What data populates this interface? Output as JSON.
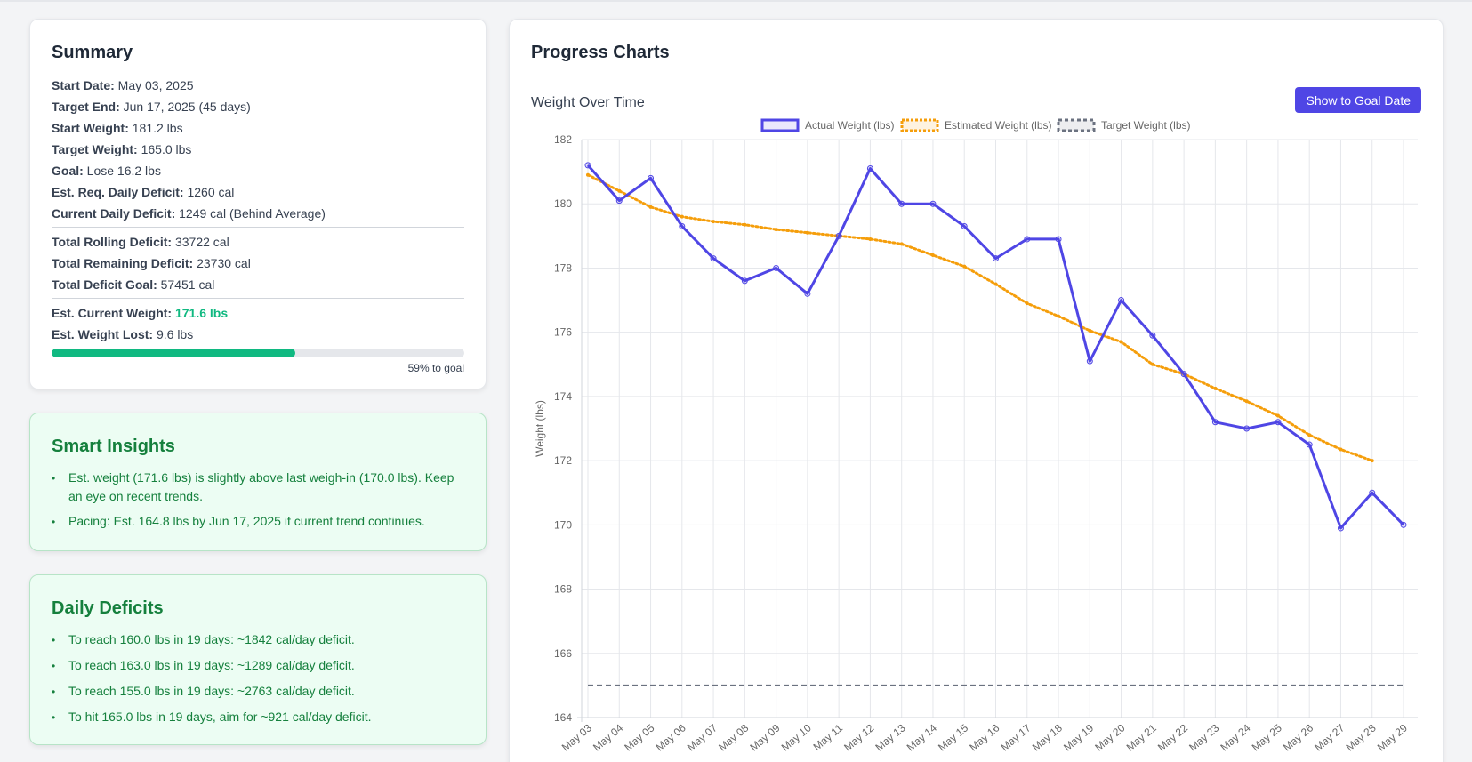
{
  "summary": {
    "title": "Summary",
    "rows_a": [
      {
        "label": "Start Date:",
        "value": "May 03, 2025"
      },
      {
        "label": "Target End:",
        "value": "Jun 17, 2025 (45 days)"
      },
      {
        "label": "Start Weight:",
        "value": "181.2 lbs"
      },
      {
        "label": "Target Weight:",
        "value": "165.0 lbs"
      },
      {
        "label": "Goal:",
        "value": "Lose 16.2 lbs"
      },
      {
        "label": "Est. Req. Daily Deficit:",
        "value": "1260 cal"
      },
      {
        "label": "Current Daily Deficit:",
        "value": "1249 cal (Behind Average)"
      }
    ],
    "rows_b": [
      {
        "label": "Total Rolling Deficit:",
        "value": "33722 cal"
      },
      {
        "label": "Total Remaining Deficit:",
        "value": "23730 cal"
      },
      {
        "label": "Total Deficit Goal:",
        "value": "57451 cal"
      }
    ],
    "rows_c": [
      {
        "label": "Est. Current Weight:",
        "value": "171.6 lbs"
      },
      {
        "label": "Est. Weight Lost:",
        "value": "9.6 lbs"
      }
    ],
    "progress_fraction": 0.59,
    "progress_text": "59% to goal",
    "progress_color": "#10b981"
  },
  "insights": {
    "title": "Smart Insights",
    "items": [
      "Est. weight (171.6 lbs) is slightly above last weigh-in (170.0 lbs). Keep an eye on recent trends.",
      "Pacing: Est. 164.8 lbs by Jun 17, 2025 if current trend continues."
    ]
  },
  "deficits": {
    "title": "Daily Deficits",
    "items": [
      "To reach 160.0 lbs in 19 days: ~1842 cal/day deficit.",
      "To reach 163.0 lbs in 19 days: ~1289 cal/day deficit.",
      "To reach 155.0 lbs in 19 days: ~2763 cal/day deficit.",
      "To hit 165.0 lbs in 19 days, aim for ~921 cal/day deficit."
    ]
  },
  "charts": {
    "title": "Progress Charts",
    "subtitle": "Weight Over Time",
    "goal_button": "Show to Goal Date"
  },
  "chart_data": {
    "type": "line",
    "title": "",
    "xlabel": "",
    "ylabel": "Weight (lbs)",
    "ylim": [
      164,
      182
    ],
    "yticks": [
      164,
      166,
      168,
      170,
      172,
      174,
      176,
      178,
      180,
      182
    ],
    "grid": true,
    "legend_position": "top-center",
    "categories": [
      "May 03",
      "May 04",
      "May 05",
      "May 06",
      "May 07",
      "May 08",
      "May 09",
      "May 10",
      "May 11",
      "May 12",
      "May 13",
      "May 14",
      "May 15",
      "May 16",
      "May 17",
      "May 18",
      "May 19",
      "May 20",
      "May 21",
      "May 22",
      "May 23",
      "May 24",
      "May 25",
      "May 26",
      "May 27",
      "May 28",
      "May 29"
    ],
    "series": [
      {
        "name": "Actual Weight (lbs)",
        "color": "#4f46e5",
        "style": "solid",
        "values": [
          181.2,
          180.1,
          180.8,
          179.3,
          178.3,
          177.6,
          178.0,
          177.2,
          179.0,
          181.1,
          180.0,
          180.0,
          179.3,
          178.3,
          178.9,
          178.9,
          175.1,
          177.0,
          175.9,
          174.7,
          173.2,
          173.0,
          173.2,
          172.5,
          169.9,
          171.0,
          170.0
        ]
      },
      {
        "name": "Estimated Weight (lbs)",
        "color": "#f59e0b",
        "style": "dotted",
        "values": [
          180.9,
          180.4,
          179.9,
          179.6,
          179.45,
          179.35,
          179.2,
          179.1,
          179.0,
          178.9,
          178.75,
          178.4,
          178.05,
          177.5,
          176.9,
          176.5,
          176.05,
          175.7,
          175.0,
          174.7,
          174.25,
          173.85,
          173.4,
          172.8,
          172.35,
          172.0,
          null
        ]
      },
      {
        "name": "Target Weight (lbs)",
        "color": "#6b7280",
        "style": "dashed",
        "values": [
          165,
          165,
          165,
          165,
          165,
          165,
          165,
          165,
          165,
          165,
          165,
          165,
          165,
          165,
          165,
          165,
          165,
          165,
          165,
          165,
          165,
          165,
          165,
          165,
          165,
          165,
          165
        ]
      }
    ]
  }
}
